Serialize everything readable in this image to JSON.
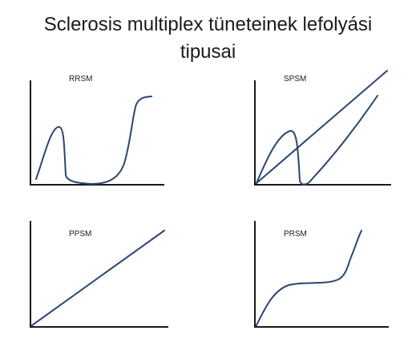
{
  "title": {
    "line1": "Sclerosis multiplex tüneteinek lefolyási",
    "line2": "tipusai"
  },
  "panels": [
    {
      "id": "rrsm",
      "label": "RRSM"
    },
    {
      "id": "spsm",
      "label": "SPSM"
    },
    {
      "id": "ppsm",
      "label": "PPSM"
    },
    {
      "id": "prsm",
      "label": "PRSM"
    }
  ],
  "colors": {
    "curve": "#2b4672",
    "axis": "#1a1a1a",
    "background": "#ffffff"
  }
}
